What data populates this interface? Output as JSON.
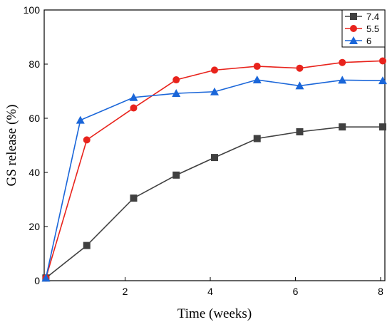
{
  "chart_data": {
    "type": "line",
    "title": "",
    "xlabel": "Time (weeks)",
    "ylabel": "GS release (%)",
    "xlim": [
      0.1,
      8.1
    ],
    "ylim": [
      0,
      100
    ],
    "x_ticks": [
      2,
      4,
      6,
      8
    ],
    "y_ticks": [
      0,
      20,
      40,
      60,
      80,
      100
    ],
    "grid": false,
    "legend_position": "top-right",
    "series": [
      {
        "name": "7.4",
        "color": "#404040",
        "marker": "square",
        "x": [
          0.14,
          1.1,
          2.2,
          3.2,
          4.1,
          5.1,
          6.1,
          7.1,
          8.05
        ],
        "y": [
          1,
          13,
          30.5,
          39,
          45.5,
          52.5,
          55,
          56.8,
          56.8
        ]
      },
      {
        "name": "5.5",
        "color": "#e8231c",
        "marker": "circle",
        "x": [
          0.14,
          1.1,
          2.2,
          3.2,
          4.1,
          5.1,
          6.1,
          7.1,
          8.05
        ],
        "y": [
          1,
          52,
          63.8,
          74.2,
          77.8,
          79.2,
          78.5,
          80.6,
          81.2
        ]
      },
      {
        "name": "6",
        "color": "#1a66d9",
        "marker": "triangle",
        "x": [
          0.14,
          0.95,
          2.2,
          3.2,
          4.1,
          5.1,
          6.1,
          7.1,
          8.05
        ],
        "y": [
          1,
          59.3,
          67.7,
          69.2,
          69.8,
          74.2,
          72,
          74.1,
          73.9
        ]
      }
    ]
  }
}
